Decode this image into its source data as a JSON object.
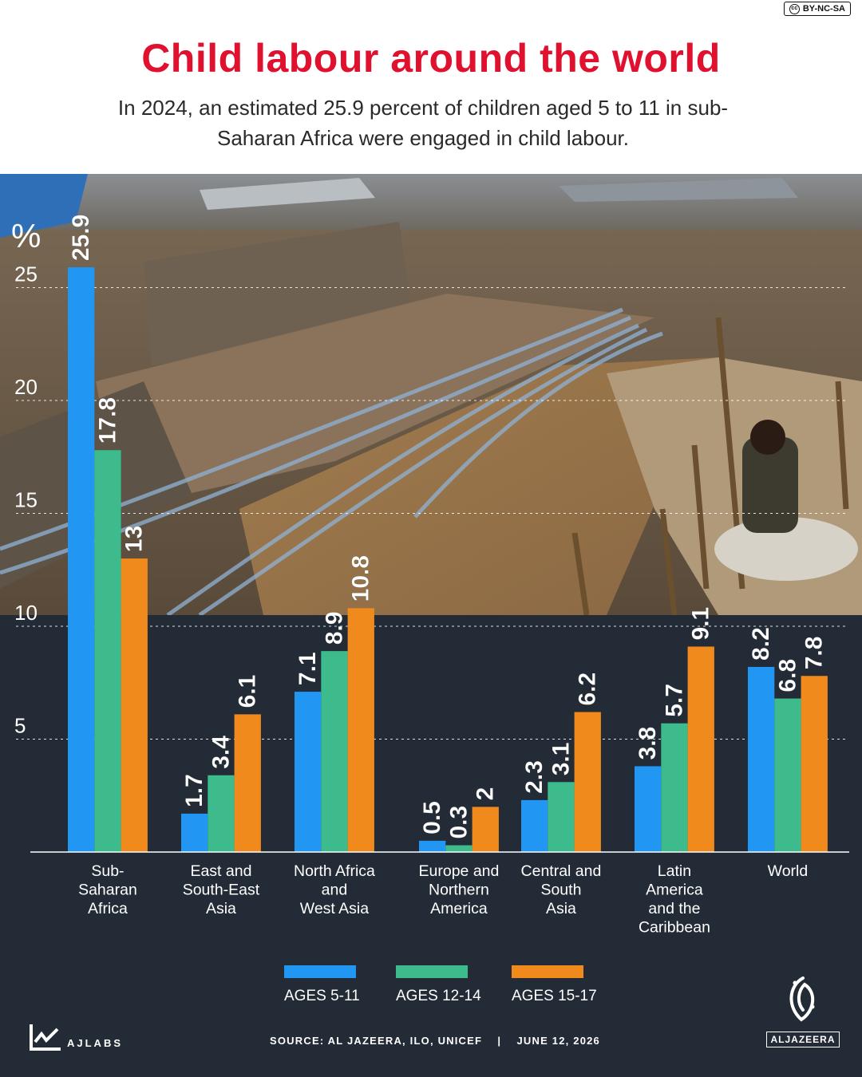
{
  "license": "BY-NC-SA",
  "license_icon": "cc",
  "title": "Child labour around the world",
  "subtitle": "In 2024, an estimated 25.9 percent of children aged 5 to 11 in sub-Saharan Africa were engaged in child labour.",
  "photo_alt_icon": "mining-site-photo",
  "chart_data": {
    "type": "bar",
    "ylabel": "%",
    "ylim": [
      0,
      27
    ],
    "yticks": [
      5,
      10,
      15,
      20,
      25
    ],
    "grid": true,
    "categories": [
      "Sub-Saharan Africa",
      "East and South-East Asia",
      "North Africa and West Asia",
      "Europe and Northern America",
      "Central and South Asia",
      "Latin America and the Caribbean",
      "World"
    ],
    "category_lines": [
      [
        "Sub-",
        "Saharan",
        "Africa"
      ],
      [
        "East and",
        "South-East",
        "Asia"
      ],
      [
        "North Africa",
        "and",
        "West Asia"
      ],
      [
        "Europe and",
        "Northern",
        "America"
      ],
      [
        "Central and",
        "South",
        "Asia"
      ],
      [
        "Latin",
        "America",
        "and the",
        "Caribbean"
      ],
      [
        "World"
      ]
    ],
    "series": [
      {
        "name": "AGES 5-11",
        "color": "#2196f3",
        "values": [
          25.9,
          1.7,
          7.1,
          0.5,
          2.3,
          3.8,
          8.2
        ],
        "labels": [
          "25.9",
          "1.7",
          "7.1",
          "0.5",
          "2.3",
          "3.8",
          "8.2"
        ]
      },
      {
        "name": "AGES 12-14",
        "color": "#3dbb8c",
        "values": [
          17.8,
          3.4,
          8.9,
          0.3,
          3.1,
          5.7,
          6.8
        ],
        "labels": [
          "17.8",
          "3.4",
          "8.9",
          "0.3",
          "3.1",
          "5.7",
          "6.8"
        ]
      },
      {
        "name": "AGES 15-17",
        "color": "#f08a1c",
        "values": [
          13,
          6.1,
          10.8,
          2,
          6.2,
          9.1,
          7.8
        ],
        "labels": [
          "13",
          "6.1",
          "10.8",
          "2",
          "6.2",
          "9.1",
          "7.8"
        ]
      }
    ]
  },
  "legend": [
    {
      "label": "AGES 5-11",
      "color": "#2196f3"
    },
    {
      "label": "AGES 12-14",
      "color": "#3dbb8c"
    },
    {
      "label": "AGES 15-17",
      "color": "#f08a1c"
    }
  ],
  "footer": {
    "brand": "AJLABS",
    "brand_icon": "ajlabs-chart-icon",
    "source": "SOURCE: AL JAZEERA, ILO, UNICEF    |    JUNE 12, 2026",
    "logo_text": "ALJAZEERA",
    "logo_icon": "aljazeera-calligraphy-icon"
  }
}
